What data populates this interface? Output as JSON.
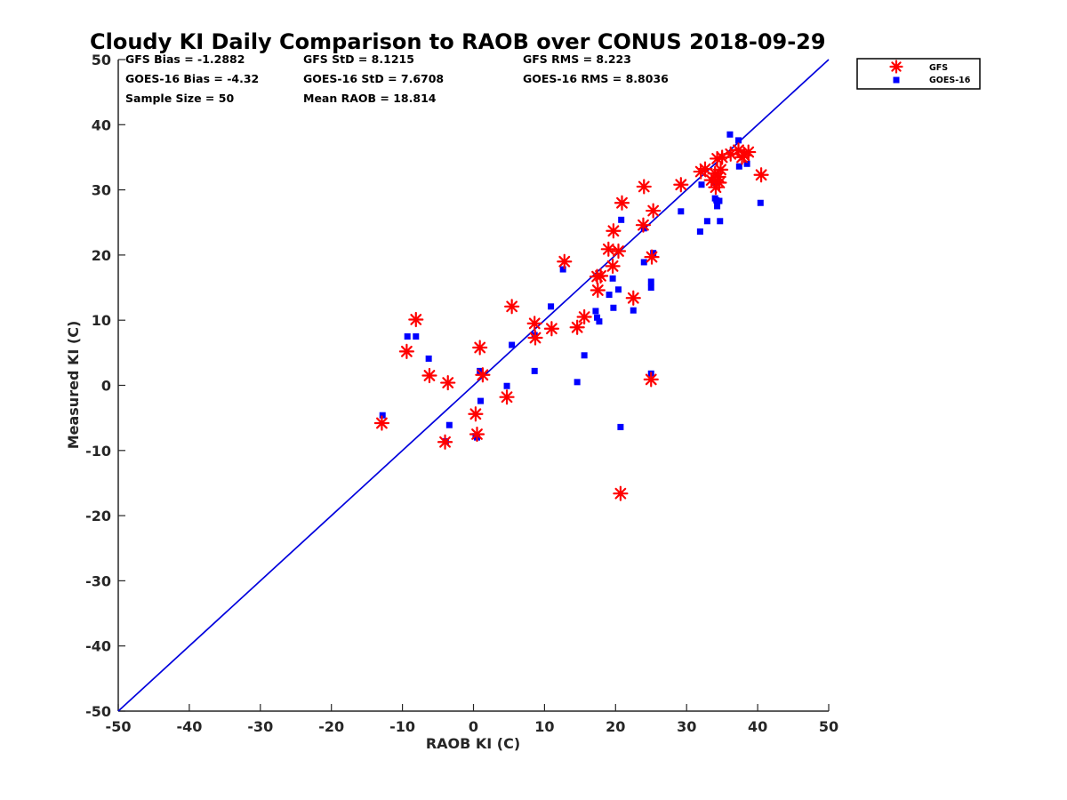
{
  "chart_data": {
    "type": "scatter",
    "title": "Cloudy KI Daily Comparison to RAOB over CONUS 2018-09-29",
    "xlabel": "RAOB KI (C)",
    "ylabel": "Measured KI (C)",
    "xlim": [
      -50,
      50
    ],
    "ylim": [
      -50,
      50
    ],
    "xticks": [
      "-50",
      "-40",
      "-30",
      "-20",
      "-10",
      "0",
      "10",
      "20",
      "30",
      "40",
      "50"
    ],
    "yticks": [
      "-50",
      "-40",
      "-30",
      "-20",
      "-10",
      "0",
      "10",
      "20",
      "30",
      "40",
      "50"
    ],
    "grid": false,
    "legend_position": "top-right outside",
    "reference_line": {
      "type": "one-to-one",
      "color": "#0000dd"
    },
    "stats": [
      "GFS Bias = -1.2882",
      "GFS StD = 8.1215",
      "GFS RMS = 8.223",
      "GOES-16 Bias = -4.32",
      "GOES-16 StD = 7.6708",
      "GOES-16 RMS = 8.8036",
      "Sample Size = 50",
      "Mean RAOB = 18.814"
    ],
    "series": [
      {
        "name": "GFS",
        "marker": "asterisk",
        "color": "#ff0000",
        "points": [
          [
            -12.9,
            -5.8
          ],
          [
            -9.4,
            5.2
          ],
          [
            -8.1,
            10.1
          ],
          [
            -6.2,
            1.5
          ],
          [
            -3.6,
            0.4
          ],
          [
            -4.0,
            -8.7
          ],
          [
            0.3,
            -4.4
          ],
          [
            0.5,
            -7.5
          ],
          [
            0.9,
            5.8
          ],
          [
            1.3,
            1.6
          ],
          [
            4.7,
            -1.8
          ],
          [
            5.4,
            12.1
          ],
          [
            8.6,
            9.5
          ],
          [
            8.7,
            7.3
          ],
          [
            11.0,
            8.7
          ],
          [
            12.8,
            19.0
          ],
          [
            14.6,
            8.9
          ],
          [
            15.6,
            10.5
          ],
          [
            17.4,
            16.7
          ],
          [
            17.5,
            14.6
          ],
          [
            17.9,
            16.8
          ],
          [
            19.0,
            20.9
          ],
          [
            19.6,
            18.3
          ],
          [
            19.7,
            23.7
          ],
          [
            20.4,
            20.6
          ],
          [
            20.9,
            28.0
          ],
          [
            20.7,
            -16.6
          ],
          [
            22.5,
            13.4
          ],
          [
            23.9,
            24.6
          ],
          [
            24.0,
            30.5
          ],
          [
            25.0,
            0.9
          ],
          [
            25.1,
            19.7
          ],
          [
            25.3,
            26.8
          ],
          [
            29.2,
            30.8
          ],
          [
            32.0,
            32.8
          ],
          [
            32.6,
            33.2
          ],
          [
            33.5,
            31.5
          ],
          [
            34.0,
            32.5
          ],
          [
            34.1,
            30.4
          ],
          [
            34.3,
            34.8
          ],
          [
            34.6,
            31.1
          ],
          [
            34.8,
            33.1
          ],
          [
            35.0,
            35.0
          ],
          [
            36.2,
            35.5
          ],
          [
            37.3,
            36.1
          ],
          [
            37.8,
            35.0
          ],
          [
            38.1,
            35.3
          ],
          [
            38.7,
            35.8
          ],
          [
            40.5,
            32.3
          ],
          [
            34.5,
            32.0
          ]
        ]
      },
      {
        "name": "GOES-16",
        "marker": "square",
        "color": "#0000ff",
        "points": [
          [
            -12.8,
            -4.6
          ],
          [
            -9.3,
            7.5
          ],
          [
            -8.1,
            7.5
          ],
          [
            -6.3,
            4.1
          ],
          [
            -3.4,
            -6.1
          ],
          [
            -3.9,
            -8.6
          ],
          [
            0.3,
            -7.8
          ],
          [
            0.5,
            -8.0
          ],
          [
            0.9,
            2.2
          ],
          [
            1.0,
            -2.4
          ],
          [
            4.7,
            -0.1
          ],
          [
            5.4,
            6.2
          ],
          [
            8.6,
            7.7
          ],
          [
            8.6,
            2.2
          ],
          [
            10.9,
            12.1
          ],
          [
            12.6,
            17.8
          ],
          [
            14.6,
            0.5
          ],
          [
            15.6,
            4.6
          ],
          [
            17.2,
            11.4
          ],
          [
            17.4,
            10.4
          ],
          [
            17.7,
            9.8
          ],
          [
            19.1,
            13.9
          ],
          [
            19.6,
            16.4
          ],
          [
            19.7,
            11.9
          ],
          [
            20.4,
            14.7
          ],
          [
            20.8,
            25.4
          ],
          [
            20.7,
            -6.4
          ],
          [
            22.5,
            11.5
          ],
          [
            24.0,
            18.9
          ],
          [
            24.0,
            24.1
          ],
          [
            25.0,
            1.8
          ],
          [
            25.0,
            15.0
          ],
          [
            25.0,
            15.9
          ],
          [
            25.3,
            20.3
          ],
          [
            29.2,
            26.7
          ],
          [
            31.9,
            23.6
          ],
          [
            32.1,
            30.8
          ],
          [
            32.9,
            25.2
          ],
          [
            33.8,
            31.1
          ],
          [
            34.0,
            28.7
          ],
          [
            34.1,
            31.1
          ],
          [
            34.2,
            28.4
          ],
          [
            34.3,
            27.5
          ],
          [
            34.6,
            28.3
          ],
          [
            34.7,
            25.2
          ],
          [
            36.1,
            38.5
          ],
          [
            37.3,
            37.6
          ],
          [
            37.4,
            33.6
          ],
          [
            38.5,
            34.0
          ],
          [
            40.4,
            28.0
          ]
        ]
      }
    ]
  }
}
